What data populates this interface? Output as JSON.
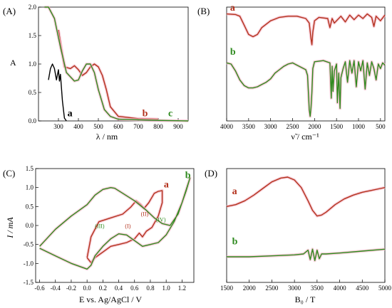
{
  "colors": {
    "red": "#b3311c",
    "green": "#2f8a1f",
    "black": "#000000",
    "shade": "#f4b9c8"
  },
  "panels": [
    {
      "id": "A",
      "label": "(A)",
      "ylabel": "A",
      "xlabel": "λ / nm"
    },
    {
      "id": "B",
      "label": "(B)",
      "ylabel": "",
      "xlabel": "ν̃ / cm⁻¹"
    },
    {
      "id": "C",
      "label": "(C)",
      "ylabel": "I / mA",
      "xlabel": "E vs. Ag/AgCl / V"
    },
    {
      "id": "D",
      "label": "(D)",
      "ylabel": "",
      "xlabel": "B₀ / T"
    }
  ],
  "chart_data": [
    {
      "panel": "A",
      "type": "line",
      "xlim": [
        200,
        950
      ],
      "ylim": [
        0,
        2.0
      ],
      "xticks": [
        "300",
        "400",
        "500",
        "600",
        "700",
        "800",
        "900"
      ],
      "yticks": [
        "0.0",
        "0.5",
        "1.0",
        "1.5",
        "2.0"
      ],
      "xtick_values": [
        300,
        400,
        500,
        600,
        700,
        800,
        900
      ],
      "ytick_values": [
        0,
        0.5,
        1.0,
        1.5,
        2.0
      ],
      "series": [
        {
          "name": "a",
          "color": "black",
          "x": [
            250,
            260,
            270,
            280,
            290,
            300,
            305,
            310,
            320,
            330,
            340
          ],
          "y": [
            0.72,
            0.92,
            1.0,
            0.92,
            0.72,
            0.9,
            0.7,
            0.82,
            0.35,
            0.05,
            0.0
          ]
        },
        {
          "name": "b",
          "color": "red",
          "x": [
            300,
            330,
            360,
            380,
            400,
            420,
            440,
            460,
            480,
            500,
            520,
            540,
            560,
            600,
            700,
            800
          ],
          "y": [
            1.6,
            0.95,
            0.92,
            0.97,
            0.9,
            0.8,
            0.85,
            0.95,
            1.0,
            0.95,
            0.8,
            0.55,
            0.25,
            0.08,
            0.04,
            0.03
          ]
        },
        {
          "name": "c",
          "color": "green",
          "x": [
            230,
            250,
            280,
            310,
            340,
            380,
            400,
            420,
            440,
            460,
            480,
            500,
            530,
            560,
            600,
            700,
            800,
            950
          ],
          "y": [
            2.0,
            2.0,
            1.8,
            1.3,
            0.85,
            0.7,
            0.72,
            0.88,
            1.0,
            1.0,
            0.85,
            0.55,
            0.2,
            0.08,
            0.03,
            0.02,
            0.01,
            0.0
          ]
        }
      ],
      "labels": [
        {
          "text": "a",
          "color": "black",
          "x": 345,
          "y": 0.08
        },
        {
          "text": "b",
          "color": "red",
          "x": 720,
          "y": 0.08
        },
        {
          "text": "c",
          "color": "green",
          "x": 850,
          "y": 0.08
        }
      ]
    },
    {
      "panel": "B",
      "type": "line",
      "xlim": [
        4000,
        400
      ],
      "ylim": [
        0,
        10
      ],
      "xticks": [
        "4000",
        "3500",
        "3000",
        "2500",
        "2000",
        "1500",
        "1000",
        "500"
      ],
      "xtick_values": [
        4000,
        3500,
        3000,
        2500,
        2000,
        1500,
        1000,
        500
      ],
      "series": [
        {
          "name": "a",
          "color": "red",
          "x": [
            4000,
            3800,
            3700,
            3600,
            3500,
            3400,
            3300,
            3200,
            3000,
            2800,
            2600,
            2400,
            2200,
            2120,
            2080,
            2060,
            2040,
            2000,
            1900,
            1700,
            1650,
            1600,
            1550,
            1400,
            1300,
            1200,
            1100,
            1000,
            900,
            800,
            700,
            650,
            600,
            500,
            400
          ],
          "y": [
            9.4,
            9.35,
            9.2,
            8.4,
            7.6,
            7.4,
            7.6,
            8.2,
            8.8,
            9.1,
            9.2,
            9.2,
            9.0,
            8.6,
            7.2,
            6.7,
            7.8,
            8.8,
            9.1,
            9.0,
            8.2,
            9.0,
            8.6,
            9.2,
            8.7,
            9.3,
            8.9,
            9.3,
            9.0,
            9.4,
            9.1,
            8.3,
            9.2,
            8.8,
            9.3
          ]
        },
        {
          "name": "b",
          "color": "green",
          "x": [
            4000,
            3900,
            3800,
            3700,
            3600,
            3500,
            3400,
            3300,
            3200,
            3100,
            3000,
            2900,
            2800,
            2700,
            2600,
            2500,
            2400,
            2300,
            2200,
            2160,
            2120,
            2100,
            2080,
            2060,
            2040,
            2000,
            1800,
            1650,
            1620,
            1600,
            1580,
            1550,
            1500,
            1480,
            1450,
            1420,
            1400,
            1350,
            1300,
            1250,
            1200,
            1150,
            1100,
            1050,
            1000,
            950,
            900,
            850,
            800,
            750,
            700,
            650,
            600,
            550,
            500,
            450,
            400
          ],
          "y": [
            5.1,
            5.0,
            4.4,
            3.6,
            3.1,
            2.9,
            2.9,
            3.0,
            3.2,
            3.4,
            3.7,
            4.2,
            4.5,
            4.8,
            5.0,
            5.1,
            4.9,
            4.7,
            4.5,
            4.0,
            1.0,
            0.4,
            1.2,
            2.5,
            4.6,
            5.2,
            5.3,
            5.1,
            2.0,
            4.8,
            2.6,
            4.4,
            5.0,
            1.6,
            4.2,
            1.1,
            3.8,
            4.6,
            5.2,
            3.4,
            5.3,
            4.2,
            5.3,
            3.0,
            5.2,
            4.4,
            5.3,
            2.8,
            5.1,
            4.0,
            5.2,
            4.6,
            3.6,
            5.0,
            4.6,
            5.1,
            4.9
          ]
        }
      ],
      "labels": [
        {
          "text": "a",
          "color": "red",
          "x": 3920,
          "y": 9.7
        },
        {
          "text": "b",
          "color": "green",
          "x": 3920,
          "y": 5.8
        }
      ]
    },
    {
      "panel": "C",
      "type": "line",
      "xlim": [
        -0.65,
        1.35
      ],
      "ylim": [
        -1.5,
        1.5
      ],
      "xticks": [
        "-0.6",
        "-0.4",
        "-0.2",
        "0.0",
        "0.2",
        "0.4",
        "0.6",
        "0.8",
        "1.0",
        "1.2"
      ],
      "xtick_values": [
        -0.6,
        -0.4,
        -0.2,
        0.0,
        0.2,
        0.4,
        0.6,
        0.8,
        1.0,
        1.2
      ],
      "yticks": [
        "-1.5",
        "-1.0",
        "-0.5",
        "0.0",
        "0.5",
        "1.0",
        "1.5"
      ],
      "ytick_values": [
        -1.5,
        -1.0,
        -0.5,
        0.0,
        0.5,
        1.0,
        1.5
      ],
      "series": [
        {
          "name": "a",
          "color": "red",
          "x": [
            0.0,
            0.05,
            0.15,
            0.3,
            0.45,
            0.55,
            0.62,
            0.68,
            0.72,
            0.78,
            0.85,
            0.9,
            0.95,
            0.95,
            0.9,
            0.82,
            0.75,
            0.7,
            0.66,
            0.6,
            0.5,
            0.4,
            0.3,
            0.2,
            0.1,
            0.05,
            0.0
          ],
          "y": [
            -0.85,
            -0.3,
            0.1,
            0.2,
            0.3,
            0.48,
            0.65,
            0.55,
            0.45,
            0.6,
            0.85,
            0.9,
            0.92,
            0.6,
            0.25,
            -0.05,
            -0.15,
            -0.3,
            -0.2,
            -0.35,
            -0.45,
            -0.5,
            -0.55,
            -0.7,
            -0.85,
            -0.98,
            -0.85
          ]
        },
        {
          "name": "b",
          "color": "green",
          "x": [
            -0.6,
            -0.4,
            -0.2,
            0.0,
            0.1,
            0.2,
            0.3,
            0.35,
            0.45,
            0.6,
            0.75,
            0.85,
            0.95,
            1.05,
            1.15,
            1.25,
            1.3,
            1.2,
            1.1,
            1.0,
            0.9,
            0.8,
            0.7,
            0.6,
            0.5,
            0.4,
            0.3,
            0.2,
            0.1,
            0.05,
            0.0,
            -0.2,
            -0.4,
            -0.6
          ],
          "y": [
            -0.55,
            -0.1,
            0.25,
            0.55,
            0.8,
            0.95,
            1.0,
            0.98,
            0.85,
            0.65,
            0.4,
            0.2,
            0.05,
            0.0,
            0.3,
            0.9,
            1.25,
            0.6,
            0.1,
            -0.25,
            -0.45,
            -0.5,
            -0.55,
            -0.4,
            -0.25,
            -0.22,
            -0.35,
            -0.55,
            -0.8,
            -1.05,
            -1.15,
            -1.0,
            -0.8,
            -0.6
          ]
        }
      ],
      "labels": [
        {
          "text": "a",
          "color": "red",
          "x": 0.97,
          "y": 1.0
        },
        {
          "text": "b",
          "color": "green",
          "x": 1.24,
          "y": 1.25
        }
      ],
      "annotations": [
        {
          "text": "(I)",
          "color": "red",
          "x": 0.48,
          "y": -0.07
        },
        {
          "text": "(II)",
          "color": "red",
          "x": 0.68,
          "y": 0.25
        },
        {
          "text": "(III)",
          "color": "green",
          "x": 0.1,
          "y": -0.07
        },
        {
          "text": "(IV)",
          "color": "green",
          "x": 0.87,
          "y": 0.1
        }
      ]
    },
    {
      "panel": "D",
      "type": "line",
      "xlim": [
        1500,
        5000
      ],
      "ylim": [
        -2,
        10
      ],
      "xticks": [
        "1500",
        "2000",
        "2500",
        "3000",
        "3500",
        "4000",
        "4500",
        "5000"
      ],
      "xtick_values": [
        1500,
        2000,
        2500,
        3000,
        3500,
        4000,
        4500,
        5000
      ],
      "series": [
        {
          "name": "a",
          "color": "red",
          "x": [
            1500,
            1700,
            1900,
            2100,
            2300,
            2500,
            2700,
            2850,
            3000,
            3150,
            3300,
            3400,
            3500,
            3600,
            3700,
            3900,
            4100,
            4300,
            4500,
            4700,
            4900,
            5000
          ],
          "y": [
            6.0,
            6.2,
            6.6,
            7.2,
            7.9,
            8.6,
            9.0,
            9.1,
            8.8,
            8.0,
            6.6,
            5.6,
            5.0,
            5.1,
            5.4,
            6.2,
            6.8,
            7.2,
            7.5,
            7.7,
            7.9,
            8.0
          ]
        },
        {
          "name": "b",
          "color": "green",
          "x": [
            1500,
            2000,
            2500,
            3000,
            3200,
            3300,
            3350,
            3400,
            3450,
            3500,
            3550,
            3600,
            3700,
            4000,
            4500,
            5000
          ],
          "y": [
            0.7,
            0.7,
            0.8,
            0.9,
            1.0,
            1.4,
            0.4,
            1.5,
            0.3,
            1.4,
            0.5,
            1.0,
            1.0,
            1.1,
            1.3,
            1.5
          ]
        }
      ],
      "labels": [
        {
          "text": "a",
          "color": "red",
          "x": 1620,
          "y": 7.3
        },
        {
          "text": "b",
          "color": "green",
          "x": 1620,
          "y": 2.0
        }
      ]
    }
  ]
}
